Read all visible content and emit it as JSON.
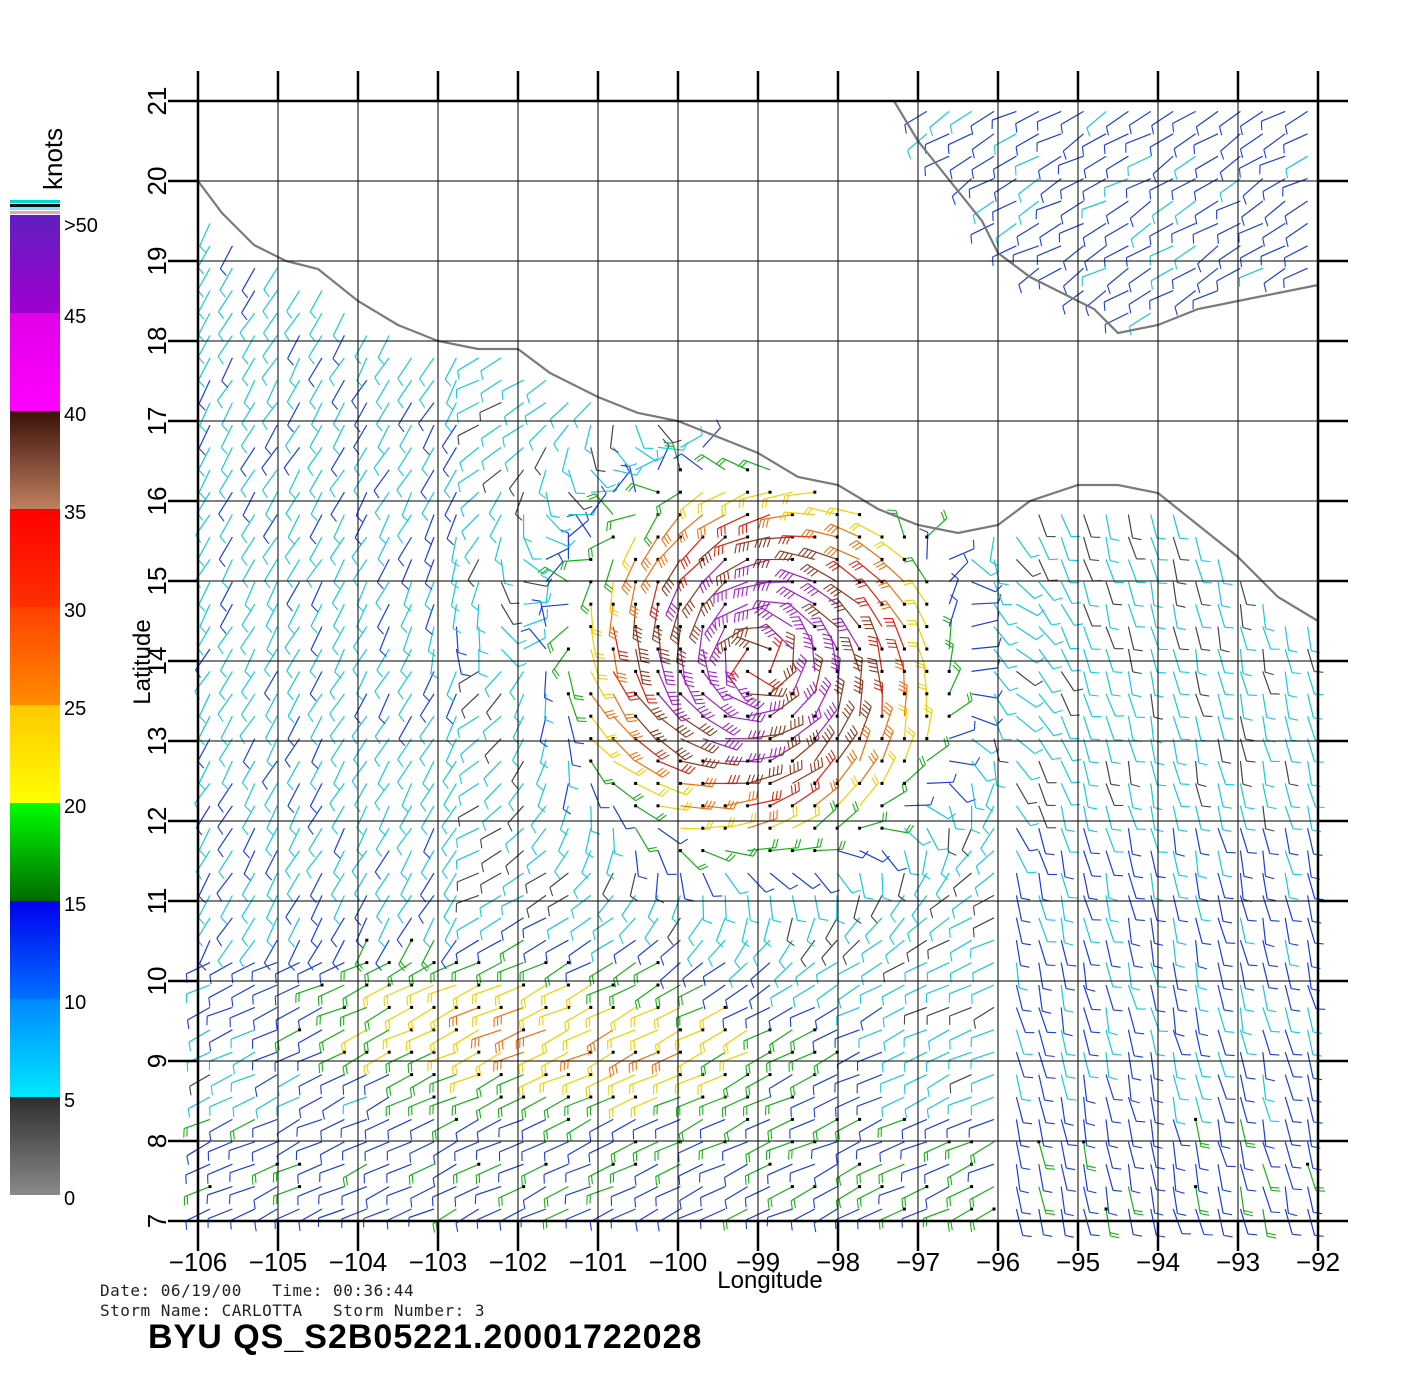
{
  "colorbar": {
    "unit_label": "knots",
    "top_label": ">50",
    "tick_labels": [
      "45",
      "40",
      "35",
      "30",
      "25",
      "20",
      "15",
      "10",
      "5",
      "0"
    ],
    "segments": [
      {
        "from": 0,
        "to": 5,
        "colors": [
          "#8a8a8a",
          "#2e2e2e"
        ]
      },
      {
        "from": 5,
        "to": 10,
        "colors": [
          "#00e8ff",
          "#0088ff"
        ]
      },
      {
        "from": 10,
        "to": 15,
        "colors": [
          "#0070ff",
          "#0000ee"
        ]
      },
      {
        "from": 15,
        "to": 20,
        "colors": [
          "#006a00",
          "#00ff00"
        ]
      },
      {
        "from": 20,
        "to": 25,
        "colors": [
          "#ffff00",
          "#ffc800"
        ]
      },
      {
        "from": 25,
        "to": 30,
        "colors": [
          "#ff8c00",
          "#ff4000"
        ]
      },
      {
        "from": 30,
        "to": 35,
        "colors": [
          "#ff3000",
          "#ff0000"
        ]
      },
      {
        "from": 35,
        "to": 40,
        "colors": [
          "#c08060",
          "#3a1008"
        ]
      },
      {
        "from": 40,
        "to": 45,
        "colors": [
          "#ff00ff",
          "#e000e8"
        ]
      },
      {
        "from": 45,
        "to": 50,
        "colors": [
          "#a000d0",
          "#6020c0"
        ]
      }
    ]
  },
  "map": {
    "lon_range": [
      -106,
      -92
    ],
    "lat_range": [
      7,
      21
    ],
    "lon_ticks": [
      -106,
      -105,
      -104,
      -103,
      -102,
      -101,
      -100,
      -99,
      -98,
      -97,
      -96,
      -95,
      -94,
      -93,
      -92
    ],
    "lat_ticks": [
      7,
      8,
      9,
      10,
      11,
      12,
      13,
      14,
      15,
      16,
      17,
      18,
      19,
      20,
      21
    ],
    "xlabel": "Longitude",
    "ylabel": "Latitude",
    "coastline": [
      [
        -106.0,
        20.0
      ],
      [
        -105.7,
        19.6
      ],
      [
        -105.3,
        19.2
      ],
      [
        -104.9,
        19.0
      ],
      [
        -104.5,
        18.9
      ],
      [
        -104.0,
        18.5
      ],
      [
        -103.5,
        18.2
      ],
      [
        -103.0,
        18.0
      ],
      [
        -102.5,
        17.9
      ],
      [
        -102.0,
        17.9
      ],
      [
        -101.6,
        17.6
      ],
      [
        -101.0,
        17.3
      ],
      [
        -100.5,
        17.1
      ],
      [
        -100.0,
        17.0
      ],
      [
        -99.5,
        16.8
      ],
      [
        -99.0,
        16.6
      ],
      [
        -98.5,
        16.3
      ],
      [
        -98.0,
        16.2
      ],
      [
        -97.5,
        15.9
      ],
      [
        -97.0,
        15.7
      ],
      [
        -96.5,
        15.6
      ],
      [
        -96.0,
        15.7
      ],
      [
        -95.6,
        16.0
      ],
      [
        -95.0,
        16.2
      ],
      [
        -94.5,
        16.2
      ],
      [
        -94.0,
        16.1
      ],
      [
        -93.5,
        15.7
      ],
      [
        -93.0,
        15.3
      ],
      [
        -92.5,
        14.8
      ],
      [
        -92.0,
        14.5
      ]
    ],
    "gulf_coast": [
      [
        -97.3,
        21.0
      ],
      [
        -97.0,
        20.5
      ],
      [
        -96.6,
        20.0
      ],
      [
        -96.2,
        19.5
      ],
      [
        -96.0,
        19.1
      ],
      [
        -95.6,
        18.8
      ],
      [
        -95.2,
        18.6
      ],
      [
        -94.8,
        18.4
      ],
      [
        -94.5,
        18.1
      ],
      [
        -94.0,
        18.2
      ],
      [
        -93.5,
        18.4
      ],
      [
        -93.0,
        18.5
      ],
      [
        -92.5,
        18.6
      ],
      [
        -92.0,
        18.7
      ]
    ],
    "storm_center": [
      -99.0,
      14.0
    ]
  },
  "footer": {
    "date_line": "Date: 06/19/00   Time: 00:36:44",
    "storm_line": "Storm Name: CARLOTTA   Storm Number: 3",
    "product_id": "BYU QS_S2B05221.20001722028"
  }
}
